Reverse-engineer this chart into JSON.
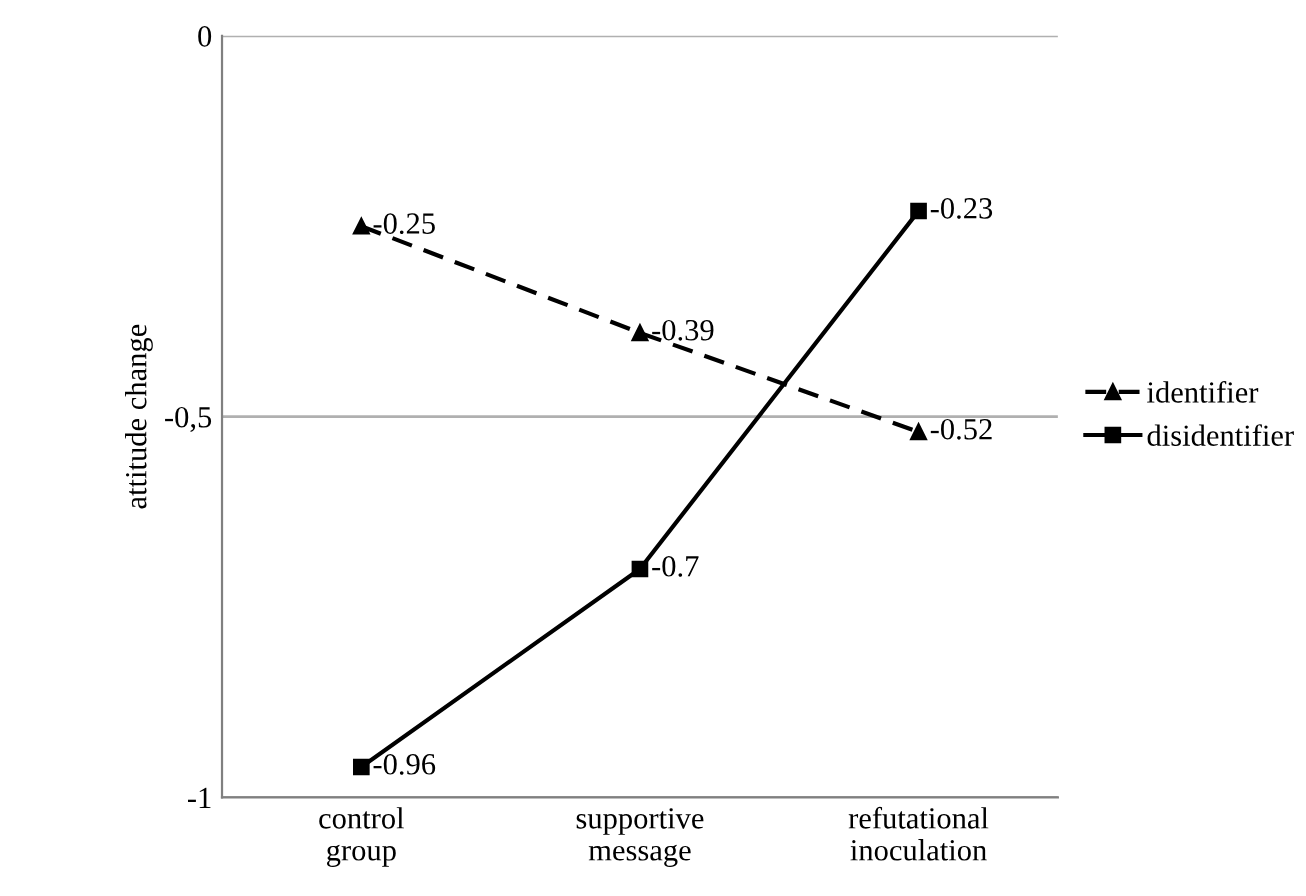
{
  "chart_data": {
    "type": "line",
    "ylabel": "attitude change",
    "categories": [
      "control group",
      "supportive message",
      "refutational inoculation"
    ],
    "series": [
      {
        "name": "identifier",
        "color": "#000000",
        "values": [
          -0.25,
          -0.39,
          -0.52
        ],
        "marker": "triangle",
        "line_style": "dashed"
      },
      {
        "name": "disidentifier",
        "color": "#000000",
        "values": [
          -0.96,
          -0.7,
          -0.23
        ],
        "marker": "square",
        "line_style": "solid"
      }
    ],
    "ylim": [
      -1,
      0
    ],
    "yticks": [
      0,
      {
        "value": -0.5,
        "label": "-0,5"
      },
      -1
    ],
    "grid": "y",
    "legend": "right",
    "data_labels": true
  }
}
